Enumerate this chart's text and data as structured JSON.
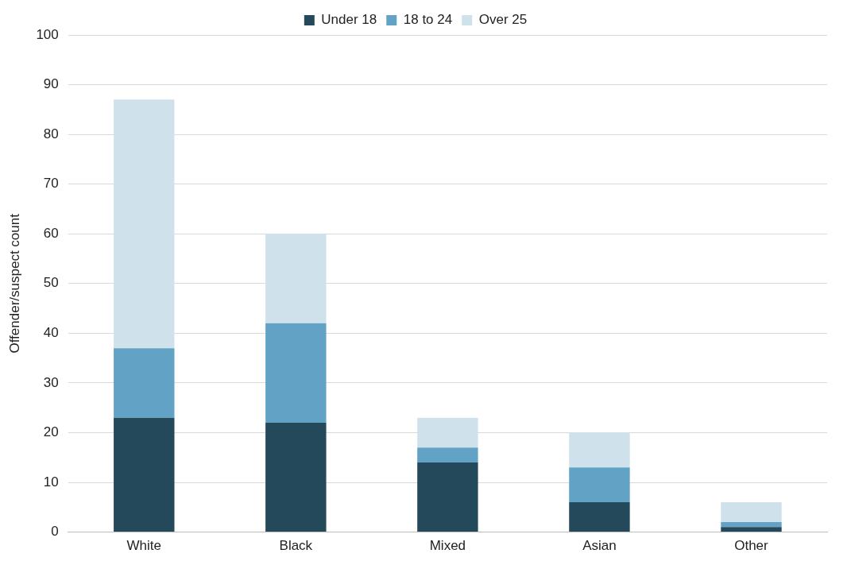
{
  "chart_data": {
    "type": "bar",
    "stacked": true,
    "ylabel": "Offender/suspect count",
    "categories": [
      "White",
      "Black",
      "Mixed",
      "Asian",
      "Other"
    ],
    "series": [
      {
        "name": "Under 18",
        "color": "#23495a",
        "values": [
          23,
          22,
          14,
          6,
          1
        ]
      },
      {
        "name": "18 to 24",
        "color": "#62a3c5",
        "values": [
          14,
          20,
          3,
          7,
          1
        ]
      },
      {
        "name": "Over 25",
        "color": "#cfe2ec",
        "values": [
          50,
          18,
          6,
          7,
          4
        ]
      }
    ],
    "ylim": [
      0,
      100
    ],
    "yticks": [
      0,
      10,
      20,
      30,
      40,
      50,
      60,
      70,
      80,
      90,
      100
    ],
    "grid": "y",
    "legend": "top"
  }
}
